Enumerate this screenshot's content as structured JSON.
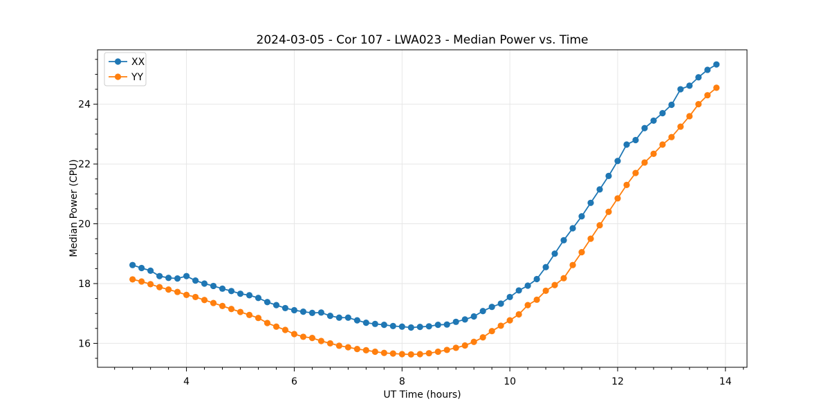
{
  "chart_data": {
    "type": "line",
    "title": "2024-03-05 - Cor 107 - LWA023 - Median Power vs. Time",
    "xlabel": "UT Time (hours)",
    "ylabel": "Median Power (CPU)",
    "xlim": [
      2.35,
      14.4
    ],
    "ylim": [
      15.2,
      25.82
    ],
    "x_ticks": [
      4,
      6,
      8,
      10,
      12,
      14
    ],
    "y_ticks": [
      16,
      18,
      20,
      22,
      24
    ],
    "x_minor_step": 0.3333,
    "y_minor_step": 0.5,
    "grid": true,
    "legend_position": "upper left",
    "marker": "circle",
    "x": [
      3.0,
      3.167,
      3.333,
      3.5,
      3.667,
      3.833,
      4.0,
      4.167,
      4.333,
      4.5,
      4.667,
      4.833,
      5.0,
      5.167,
      5.333,
      5.5,
      5.667,
      5.833,
      6.0,
      6.167,
      6.333,
      6.5,
      6.667,
      6.833,
      7.0,
      7.167,
      7.333,
      7.5,
      7.667,
      7.833,
      8.0,
      8.167,
      8.333,
      8.5,
      8.667,
      8.833,
      9.0,
      9.167,
      9.333,
      9.5,
      9.667,
      9.833,
      10.0,
      10.167,
      10.333,
      10.5,
      10.667,
      10.833,
      11.0,
      11.167,
      11.333,
      11.5,
      11.667,
      11.833,
      12.0,
      12.167,
      12.333,
      12.5,
      12.667,
      12.833,
      13.0,
      13.167,
      13.333,
      13.5,
      13.667,
      13.833
    ],
    "series": [
      {
        "name": "XX",
        "color": "#1f77b4",
        "values": [
          18.62,
          18.52,
          18.43,
          18.25,
          18.19,
          18.17,
          18.25,
          18.1,
          18.0,
          17.92,
          17.83,
          17.75,
          17.66,
          17.61,
          17.52,
          17.38,
          17.28,
          17.18,
          17.11,
          17.06,
          17.02,
          17.03,
          16.92,
          16.86,
          16.86,
          16.77,
          16.69,
          16.65,
          16.62,
          16.58,
          16.56,
          16.53,
          16.55,
          16.57,
          16.62,
          16.63,
          16.72,
          16.8,
          16.9,
          17.08,
          17.22,
          17.33,
          17.55,
          17.77,
          17.93,
          18.15,
          18.55,
          19.0,
          19.45,
          19.85,
          20.25,
          20.7,
          21.15,
          21.6,
          22.1,
          22.65,
          22.8,
          23.2,
          23.45,
          23.7,
          23.98,
          24.5,
          24.62,
          24.9,
          25.15,
          25.33
        ]
      },
      {
        "name": "YY",
        "color": "#ff7f0e",
        "values": [
          18.14,
          18.07,
          17.98,
          17.88,
          17.8,
          17.72,
          17.62,
          17.55,
          17.45,
          17.35,
          17.25,
          17.15,
          17.05,
          16.95,
          16.85,
          16.68,
          16.56,
          16.45,
          16.31,
          16.22,
          16.18,
          16.08,
          16.0,
          15.92,
          15.87,
          15.81,
          15.77,
          15.72,
          15.68,
          15.66,
          15.64,
          15.63,
          15.64,
          15.67,
          15.72,
          15.78,
          15.85,
          15.93,
          16.05,
          16.2,
          16.41,
          16.59,
          16.77,
          16.97,
          17.28,
          17.46,
          17.76,
          17.95,
          18.18,
          18.62,
          19.05,
          19.5,
          19.95,
          20.4,
          20.85,
          21.3,
          21.7,
          22.05,
          22.34,
          22.65,
          22.9,
          23.25,
          23.6,
          24.0,
          24.3,
          24.55
        ]
      }
    ],
    "colors": {
      "grid": "#e6e6e6",
      "spine": "#000000",
      "background": "#ffffff",
      "legend_border": "#cccccc"
    }
  }
}
